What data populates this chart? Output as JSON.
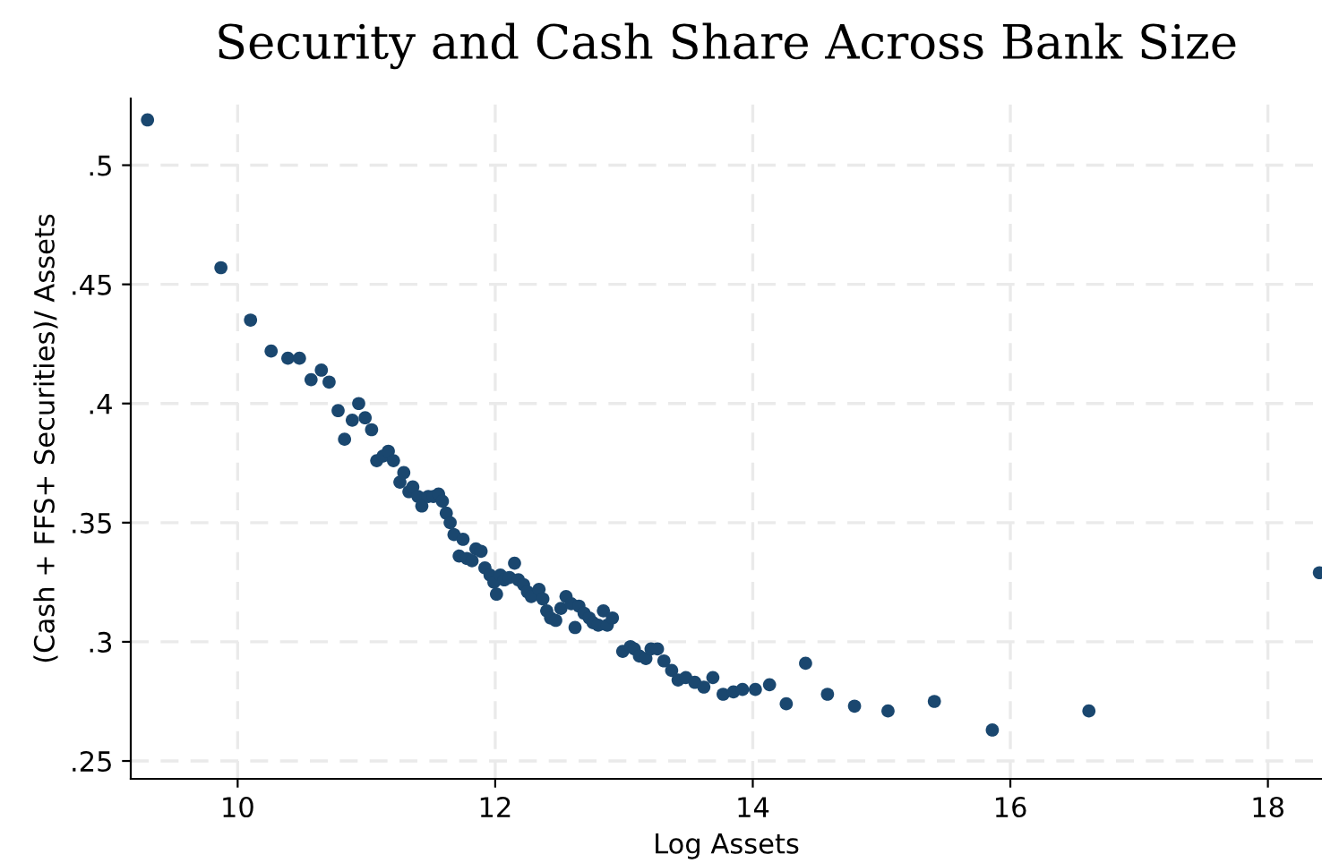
{
  "chart_data": {
    "type": "scatter",
    "title": "Security and Cash Share Across Bank Size",
    "xlabel": "Log Assets",
    "ylabel": "(Cash + FFS+ Securities)/ Assets",
    "x": [
      9.3,
      9.87,
      10.1,
      10.26,
      10.39,
      10.48,
      10.57,
      10.65,
      10.71,
      10.78,
      10.83,
      10.89,
      10.94,
      10.99,
      11.04,
      11.08,
      11.13,
      11.17,
      11.21,
      11.26,
      11.29,
      11.33,
      11.36,
      11.4,
      11.43,
      11.48,
      11.52,
      11.56,
      11.59,
      11.62,
      11.65,
      11.68,
      11.72,
      11.75,
      11.78,
      11.82,
      11.85,
      11.89,
      11.92,
      11.96,
      11.99,
      12.01,
      12.04,
      12.07,
      12.11,
      12.15,
      12.18,
      12.22,
      12.25,
      12.28,
      12.34,
      12.37,
      12.4,
      12.43,
      12.47,
      12.51,
      12.55,
      12.59,
      12.62,
      12.65,
      12.69,
      12.73,
      12.76,
      12.8,
      12.84,
      12.87,
      12.91,
      12.99,
      13.05,
      13.08,
      13.12,
      13.17,
      13.21,
      13.26,
      13.31,
      13.37,
      13.42,
      13.48,
      13.55,
      13.62,
      13.69,
      13.77,
      13.85,
      13.92,
      14.02,
      14.13,
      14.26,
      14.41,
      14.58,
      14.79,
      15.05,
      15.41,
      15.86,
      16.61,
      18.4
    ],
    "values": [
      0.519,
      0.457,
      0.435,
      0.422,
      0.419,
      0.419,
      0.41,
      0.414,
      0.409,
      0.397,
      0.385,
      0.393,
      0.4,
      0.394,
      0.389,
      0.376,
      0.378,
      0.38,
      0.376,
      0.367,
      0.371,
      0.363,
      0.365,
      0.361,
      0.357,
      0.361,
      0.361,
      0.362,
      0.359,
      0.354,
      0.35,
      0.345,
      0.336,
      0.343,
      0.335,
      0.334,
      0.339,
      0.338,
      0.331,
      0.328,
      0.325,
      0.32,
      0.328,
      0.326,
      0.327,
      0.333,
      0.326,
      0.324,
      0.321,
      0.319,
      0.322,
      0.318,
      0.313,
      0.31,
      0.309,
      0.314,
      0.319,
      0.316,
      0.306,
      0.315,
      0.312,
      0.31,
      0.308,
      0.307,
      0.313,
      0.307,
      0.31,
      0.296,
      0.298,
      0.297,
      0.294,
      0.293,
      0.297,
      0.297,
      0.292,
      0.288,
      0.284,
      0.285,
      0.283,
      0.281,
      0.285,
      0.278,
      0.279,
      0.28,
      0.28,
      0.282,
      0.274,
      0.291,
      0.278,
      0.273,
      0.271,
      0.275,
      0.263,
      0.271,
      0.329
    ],
    "color": "#1a476f",
    "marker": "circle",
    "xlim": [
      9.17,
      18.42
    ],
    "xticks": [
      10,
      12,
      14,
      16,
      18
    ],
    "ylim": [
      0.2425,
      0.528
    ],
    "yticks": [
      {
        "value": 0.25,
        "label": ".25"
      },
      {
        "value": 0.3,
        "label": ".3"
      },
      {
        "value": 0.35,
        "label": ".35"
      },
      {
        "value": 0.4,
        "label": ".4"
      },
      {
        "value": 0.45,
        "label": ".45"
      },
      {
        "value": 0.5,
        "label": ".5"
      }
    ],
    "grid": true,
    "legend": false
  }
}
